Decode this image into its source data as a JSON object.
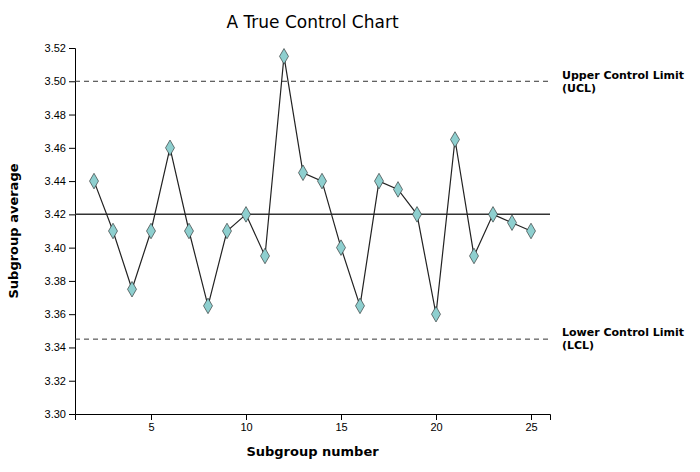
{
  "chart_data": {
    "type": "line",
    "title": "A True Control Chart",
    "x_label": "Subgroup number",
    "y_label": "Subgroup average",
    "x": [
      2,
      3,
      4,
      5,
      6,
      7,
      8,
      9,
      10,
      11,
      12,
      13,
      14,
      15,
      16,
      17,
      18,
      19,
      20,
      21,
      22,
      23,
      24,
      25
    ],
    "values": [
      3.44,
      3.41,
      3.375,
      3.41,
      3.46,
      3.41,
      3.365,
      3.41,
      3.42,
      3.395,
      3.515,
      3.445,
      3.44,
      3.4,
      3.365,
      3.44,
      3.435,
      3.42,
      3.36,
      3.465,
      3.395,
      3.42,
      3.415,
      3.41
    ],
    "color": "#8ecfcf",
    "marker": "diamond",
    "lines": [
      {
        "value": 3.5,
        "label": "Upper Control Limit\n(UCL)",
        "line_style": "dashed"
      },
      {
        "value": 3.345,
        "label": "Lower Control Limit\n(LCL)",
        "line_style": "dashed"
      },
      {
        "value": 3.42,
        "line_style": "solid"
      }
    ],
    "xlim": [
      1,
      26
    ],
    "ylim": [
      3.3,
      3.52
    ],
    "xticks": [
      5,
      10,
      15,
      20,
      25
    ],
    "yticks": [
      {
        "value": 3.3,
        "label": "3.30"
      },
      3.32,
      3.34,
      3.36,
      3.38,
      {
        "value": 3.4,
        "label": "3.40"
      },
      3.42,
      3.44,
      3.46,
      3.48,
      {
        "value": 3.5,
        "label": "3.50"
      },
      3.52
    ],
    "grid": false
  }
}
